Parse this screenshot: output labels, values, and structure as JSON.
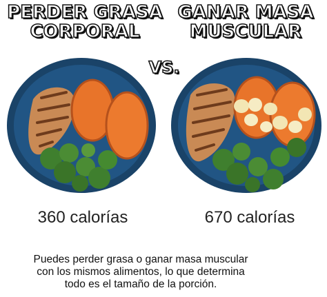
{
  "left": {
    "title_line1": "PERDER GRASA",
    "title_line2": "CORPORAL",
    "calories": "360 calorías"
  },
  "vs_label": "VS.",
  "right": {
    "title_line1": "GANAR MASA",
    "title_line2": "MUSCULAR",
    "calories": "670 calorías"
  },
  "caption": {
    "line1": "Puedes perder grasa o ganar masa muscular",
    "line2": "con los mismos alimentos, lo que determina",
    "line3": "todo es el tamaño de la porción."
  },
  "colors": {
    "plate": "#1f4e7a",
    "chicken": "#c98a55",
    "sweet_potato": "#e8742a",
    "broccoli": "#3f7f2e",
    "banana": "#f3e6b4"
  }
}
